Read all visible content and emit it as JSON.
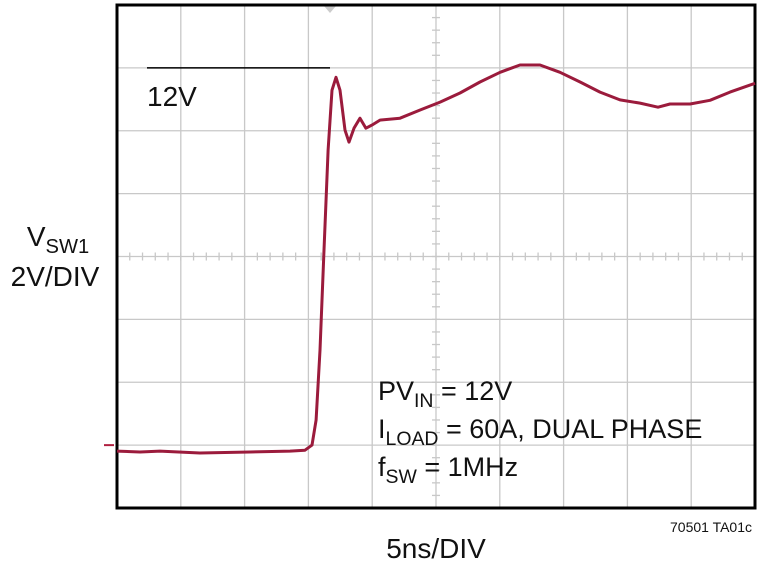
{
  "chart_data": {
    "type": "line",
    "y_label": [
      {
        "text": "V"
      },
      {
        "text": "SW1",
        "sub": true
      }
    ],
    "y_scale_label": "2V/DIV",
    "x_label": "5ns/DIV",
    "figure_id": "70501 TA01c",
    "reference": {
      "value": 12,
      "label": "12V"
    },
    "ground_marker": 0,
    "annotations": [
      [
        {
          "text": "PV"
        },
        {
          "text": "IN",
          "sub": true
        },
        {
          "text": " = 12V"
        }
      ],
      [
        {
          "text": "I"
        },
        {
          "text": "LOAD",
          "sub": true
        },
        {
          "text": " = 60A, DUAL PHASE"
        }
      ],
      [
        {
          "text": "f"
        },
        {
          "text": "SW",
          "sub": true
        },
        {
          "text": " = 1MHz"
        }
      ]
    ],
    "color": "#9b1b3c",
    "xlim": [
      0,
      50
    ],
    "ylim": [
      -2,
      14
    ],
    "x": [
      0,
      1.8,
      3.37,
      6.5,
      10.42,
      13.56,
      14.73,
      15.28,
      15.6,
      15.91,
      16.22,
      16.54,
      16.85,
      17.16,
      17.48,
      17.87,
      18.18,
      18.57,
      19.04,
      19.51,
      19.98,
      20.61,
      22.18,
      23.75,
      25.32,
      26.88,
      28.45,
      30.02,
      31.58,
      33.15,
      34.72,
      36.29,
      37.85,
      39.42,
      40.99,
      42.4,
      43.34,
      44.91,
      46.47,
      48.04,
      50
    ],
    "values": [
      -0.19,
      -0.22,
      -0.19,
      -0.25,
      -0.22,
      -0.19,
      -0.16,
      0,
      0.8,
      3.02,
      6.2,
      9.38,
      11.29,
      11.7,
      11.29,
      10.02,
      9.64,
      10.08,
      10.4,
      10.08,
      10.18,
      10.34,
      10.4,
      10.66,
      10.91,
      11.2,
      11.55,
      11.86,
      12.09,
      12.09,
      11.86,
      11.55,
      11.23,
      10.98,
      10.88,
      10.75,
      10.85,
      10.85,
      10.97,
      11.23,
      11.51
    ]
  }
}
